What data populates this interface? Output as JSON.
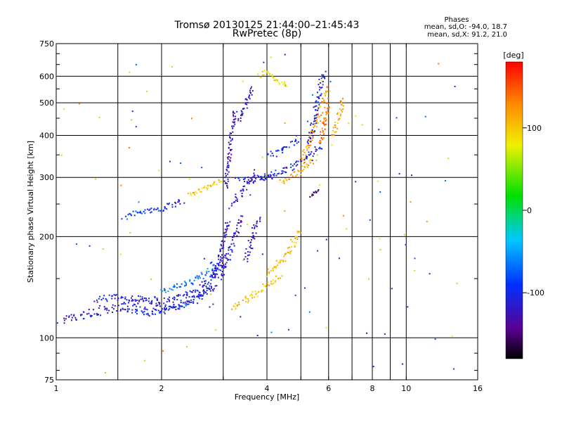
{
  "chart_data": {
    "type": "scatter",
    "title": "Tromsø 20130125 21:44:00–21:45:43",
    "subtitle": "RwPretec (8p)",
    "xlabel": "Frequency [MHz]",
    "ylabel": "Stationary phase Virtual Height [km]",
    "x_scale": "log",
    "y_scale": "log",
    "xlim": [
      1,
      16
    ],
    "ylim": [
      75,
      750
    ],
    "x_ticks": [
      1,
      2,
      4,
      6,
      8,
      10,
      16
    ],
    "x_tick_labels": [
      "1",
      "2",
      "4",
      "6",
      "8",
      "10",
      "16"
    ],
    "x_grid": [
      1.5,
      2,
      3,
      4,
      5,
      6,
      7,
      8,
      9,
      10
    ],
    "y_ticks": [
      75,
      100,
      200,
      300,
      400,
      500,
      600,
      750
    ],
    "y_tick_labels": [
      "75",
      "100",
      "200",
      "300",
      "400",
      "500",
      "600",
      "750"
    ],
    "y_grid": [
      100,
      200,
      300,
      400,
      500,
      600
    ],
    "grid": true,
    "stats": {
      "title": "Phases",
      "line_o": "mean, sd,O: -94.0, 18.7",
      "line_x": "mean, sd,X:  91.2, 21.0"
    },
    "colorbar": {
      "label": "[deg]",
      "range": [
        -180,
        180
      ],
      "ticks": [
        100,
        0,
        -100
      ],
      "tick_labels": [
        "100",
        "0",
        "-100"
      ],
      "colormap": "rainbow"
    },
    "traces": [
      {
        "x": [
          1.02,
          1.1,
          1.2,
          1.35,
          1.5,
          1.7,
          1.9,
          2.05,
          2.2,
          2.4,
          2.6,
          2.75,
          2.9,
          3.0
        ],
        "y": [
          113,
          114,
          117,
          120,
          123,
          126,
          124,
          122,
          124,
          128,
          133,
          140,
          150,
          165
        ],
        "phase": -115,
        "spread": 6
      },
      {
        "x": [
          1.3,
          1.5,
          1.7,
          1.9,
          2.1,
          2.3,
          2.5,
          2.7,
          2.9,
          3.05
        ],
        "y": [
          130,
          132,
          131,
          129,
          130,
          133,
          138,
          146,
          158,
          175
        ],
        "phase": -108,
        "spread": 5
      },
      {
        "x": [
          1.6,
          1.8,
          2.0,
          2.2,
          2.4,
          2.6,
          2.8
        ],
        "y": [
          122,
          118,
          119,
          123,
          128,
          135,
          142
        ],
        "phase": -100,
        "spread": 4
      },
      {
        "x": [
          2.0,
          2.2,
          2.4,
          2.6,
          2.75,
          2.85
        ],
        "y": [
          138,
          142,
          146,
          152,
          160,
          168
        ],
        "phase": -70,
        "spread": 4
      },
      {
        "x": [
          2.8,
          2.9,
          2.95,
          3.0,
          3.05,
          3.1
        ],
        "y": [
          150,
          165,
          180,
          195,
          210,
          225
        ],
        "phase": -112,
        "spread": 3
      },
      {
        "x": [
          3.05,
          3.1,
          3.15,
          3.2,
          3.25
        ],
        "y": [
          280,
          330,
          380,
          430,
          480
        ],
        "phase": -125,
        "spread": 3
      },
      {
        "x": [
          3.2,
          3.35,
          3.5,
          3.65,
          3.75
        ],
        "y": [
          250,
          268,
          285,
          300,
          315
        ],
        "phase": -118,
        "spread": 4
      },
      {
        "x": [
          3.3,
          3.45,
          3.6,
          3.8,
          4.0,
          4.2
        ],
        "y": [
          300,
          295,
          292,
          298,
          295,
          300
        ],
        "phase": -110,
        "spread": 5
      },
      {
        "x": [
          3.35,
          3.45,
          3.55,
          3.65
        ],
        "y": [
          440,
          480,
          520,
          560
        ],
        "phase": -115,
        "spread": 3
      },
      {
        "x": [
          3.0,
          3.1,
          3.2,
          3.3,
          3.4
        ],
        "y": [
          160,
          175,
          190,
          210,
          230
        ],
        "phase": -120,
        "spread": 4
      },
      {
        "x": [
          3.5,
          3.6,
          3.7,
          3.8
        ],
        "y": [
          170,
          190,
          210,
          230
        ],
        "phase": -118,
        "spread": 4
      },
      {
        "x": [
          4.0,
          4.2,
          4.4,
          4.6,
          4.8,
          5.0
        ],
        "y": [
          355,
          352,
          360,
          372,
          380,
          390
        ],
        "phase": -100,
        "spread": 4
      },
      {
        "x": [
          3.9,
          4.3,
          4.6,
          4.9,
          5.2,
          5.5,
          5.8
        ],
        "y": [
          300,
          310,
          318,
          330,
          345,
          360,
          375
        ],
        "phase": -105,
        "spread": 4
      },
      {
        "x": [
          3.2,
          3.4,
          3.6,
          3.8,
          4.0,
          4.2,
          4.4
        ],
        "y": [
          122,
          128,
          133,
          138,
          143,
          148,
          153
        ],
        "phase": 100,
        "spread": 5
      },
      {
        "x": [
          4.0,
          4.2,
          4.4,
          4.6,
          4.8,
          5.0
        ],
        "y": [
          155,
          162,
          170,
          180,
          195,
          210
        ],
        "phase": 105,
        "spread": 4
      },
      {
        "x": [
          4.4,
          4.7,
          5.0,
          5.3,
          5.5
        ],
        "y": [
          290,
          300,
          315,
          330,
          345
        ],
        "phase": 110,
        "spread": 4
      },
      {
        "x": [
          5.0,
          5.2,
          5.4,
          5.6,
          5.8,
          6.0
        ],
        "y": [
          330,
          370,
          410,
          450,
          500,
          560
        ],
        "phase": 120,
        "spread": 4
      },
      {
        "x": [
          5.3,
          5.4,
          5.5,
          5.6,
          5.7,
          5.8
        ],
        "y": [
          380,
          420,
          470,
          520,
          570,
          620
        ],
        "phase": -105,
        "spread": 4
      },
      {
        "x": [
          5.7,
          5.8,
          5.9,
          6.0
        ],
        "y": [
          380,
          420,
          460,
          500
        ],
        "phase": 140,
        "spread": 3
      },
      {
        "x": [
          6.2,
          6.4,
          6.6
        ],
        "y": [
          400,
          450,
          520
        ],
        "phase": 115,
        "spread": 3
      },
      {
        "x": [
          2.0,
          2.1,
          2.2,
          2.3
        ],
        "y": [
          240,
          245,
          250,
          255
        ],
        "phase": -105,
        "spread": 4
      },
      {
        "x": [
          1.6,
          1.8,
          2.0
        ],
        "y": [
          232,
          238,
          242
        ],
        "phase": -90,
        "spread": 3
      },
      {
        "x": [
          2.4,
          2.6,
          2.8,
          3.0
        ],
        "y": [
          265,
          275,
          285,
          295
        ],
        "phase": 100,
        "spread": 3
      },
      {
        "x": [
          5.3,
          5.5,
          5.7
        ],
        "y": [
          265,
          270,
          275
        ],
        "phase": -150,
        "spread": 2
      },
      {
        "x": [
          3.8,
          4.0,
          4.3,
          4.6
        ],
        "y": [
          600,
          620,
          580,
          560
        ],
        "phase": 90,
        "spread": 3
      }
    ],
    "scatter_noise": {
      "count": 110,
      "xlim": [
        1,
        14
      ],
      "ylim": [
        78,
        700
      ]
    }
  }
}
